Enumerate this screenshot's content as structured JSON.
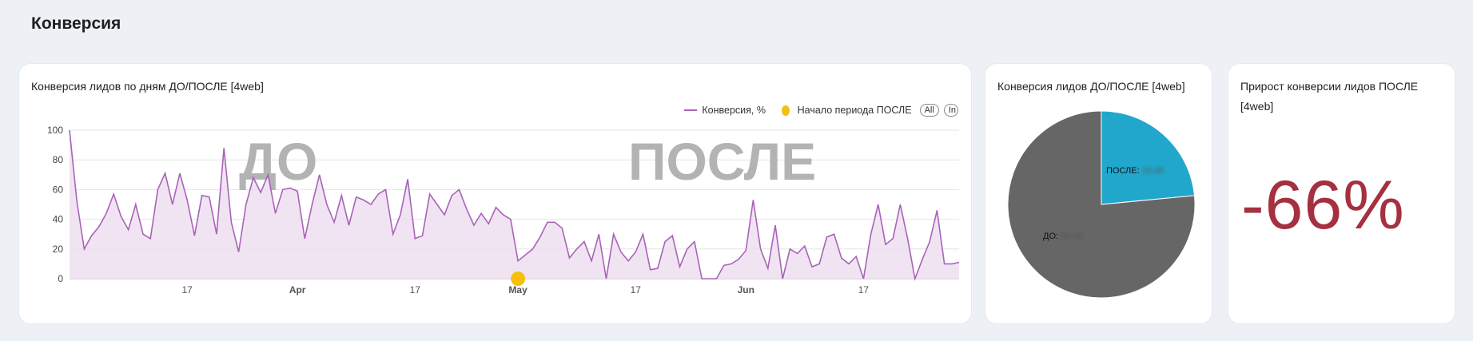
{
  "page_title": "Конверсия",
  "line_card": {
    "title": "Конверсия лидов по дням ДО/ПОСЛЕ [4web]",
    "legend": {
      "series_label": "Конверсия, %",
      "marker_label": "Начало периода ПОСЛЕ",
      "pill_all": "All",
      "pill_in": "In"
    },
    "watermark_before": "ДО",
    "watermark_after": "ПОСЛЕ",
    "colors": {
      "line": "#a963b8",
      "fill": "#eddff0",
      "marker": "#f5c00d",
      "grid": "#e4e4e4"
    }
  },
  "pie_card": {
    "title": "Конверсия лидов ДО/ПОСЛЕ [4web]",
    "after_label": "ПОСЛЕ:",
    "after_value": "15.45",
    "before_label": "ДО:",
    "before_value": "50.33",
    "colors": {
      "after": "#22a7cc",
      "before": "#666666"
    }
  },
  "kpi_card": {
    "title": "Прирост конверсии лидов ПОСЛЕ [4web]",
    "value": "-66%",
    "color": "#a5303f"
  },
  "chart_data": [
    {
      "type": "line",
      "title": "Конверсия лидов по дням ДО/ПОСЛЕ [4web]",
      "series": [
        {
          "name": "Конверсия, %",
          "values": [
            100,
            52,
            20,
            29,
            35,
            44,
            57,
            42,
            33,
            50,
            30,
            27,
            60,
            71,
            50,
            71,
            53,
            29,
            56,
            55,
            30,
            88,
            38,
            18,
            50,
            68,
            58,
            70,
            44,
            60,
            61,
            59,
            27,
            50,
            70,
            50,
            38,
            56,
            36,
            55,
            53,
            50,
            57,
            60,
            30,
            43,
            67,
            27,
            29,
            57,
            50,
            43,
            56,
            60,
            47,
            36,
            44,
            37,
            48,
            43,
            40,
            12,
            16,
            20,
            28,
            38,
            38,
            34,
            14,
            20,
            25,
            12,
            30,
            0,
            30,
            18,
            12,
            18,
            30,
            6,
            7,
            25,
            29,
            8,
            20,
            25,
            0,
            0,
            0,
            9,
            10,
            13,
            19,
            53,
            20,
            7,
            36,
            0,
            20,
            17,
            22,
            8,
            10,
            28,
            30,
            14,
            10,
            15,
            0,
            30,
            50,
            23,
            27,
            50,
            27,
            0,
            13,
            25,
            46,
            10,
            10,
            11
          ]
        }
      ],
      "x_start": "2024-03-01",
      "x_end": "2024-06-30",
      "x_tick_labels": [
        "17",
        "Apr",
        "17",
        "May",
        "17",
        "Jun",
        "17"
      ],
      "ylim": [
        0,
        100
      ],
      "y_tick_labels": [
        "0",
        "20",
        "40",
        "60",
        "80",
        "100"
      ],
      "annotations": [
        {
          "label": "Начало периода ПОСЛЕ",
          "x_label": "May",
          "y": 0
        }
      ],
      "grid": true,
      "legend_position": "top-right"
    },
    {
      "type": "pie",
      "title": "Конверсия лидов ДО/ПОСЛЕ [4web]",
      "categories": [
        "ПОСЛЕ",
        "ДО"
      ],
      "values": [
        15.45,
        50.33
      ]
    }
  ]
}
